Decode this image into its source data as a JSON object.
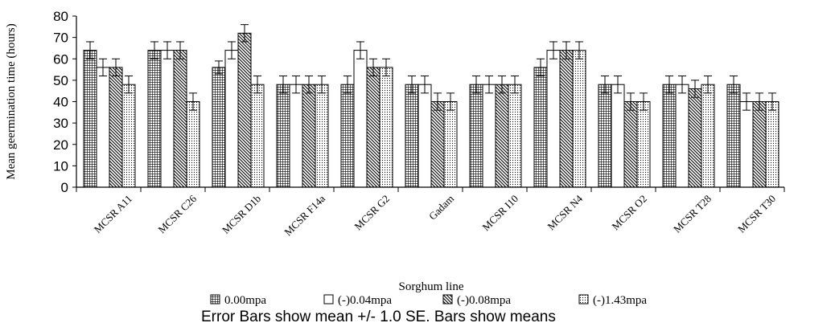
{
  "chart_data": {
    "type": "bar",
    "title": "",
    "xlabel": "Sorghum line",
    "ylabel": "Mean geermination time (hours)",
    "ylim": [
      0,
      80
    ],
    "yticks": [
      0,
      10,
      20,
      30,
      40,
      50,
      60,
      70,
      80
    ],
    "categories": [
      "MCSR A11",
      "MCSR C26",
      "MCSR D1b",
      "MCSR F14a",
      "MCSR G2",
      "Gadam",
      "MCSR I10",
      "MCSR N4",
      "MCSR O2",
      "MCSR T28",
      "MCSR T30"
    ],
    "series": [
      {
        "name": "0.00mpa",
        "pattern": "dense-grid",
        "values": [
          64,
          64,
          56,
          48,
          48,
          48,
          48,
          56,
          48,
          48,
          48
        ],
        "errors": [
          4,
          4,
          3,
          4,
          4,
          4,
          4,
          4,
          4,
          4,
          4
        ]
      },
      {
        "name": "(-)0.04mpa",
        "pattern": "plain",
        "values": [
          56,
          64,
          64,
          48,
          64,
          48,
          48,
          64,
          48,
          48,
          40
        ],
        "errors": [
          4,
          4,
          4,
          4,
          4,
          4,
          4,
          4,
          4,
          4,
          4
        ]
      },
      {
        "name": "(-)0.08mpa",
        "pattern": "diagonal",
        "values": [
          56,
          64,
          72,
          48,
          56,
          40,
          48,
          64,
          40,
          46,
          40
        ],
        "errors": [
          4,
          4,
          4,
          4,
          4,
          4,
          4,
          4,
          4,
          4,
          4
        ]
      },
      {
        "name": "(-)1.43mpa",
        "pattern": "dots",
        "values": [
          48,
          40,
          48,
          48,
          56,
          40,
          48,
          64,
          40,
          48,
          40
        ],
        "errors": [
          4,
          4,
          4,
          4,
          4,
          4,
          4,
          4,
          4,
          4,
          4
        ]
      }
    ],
    "note": "Error Bars show mean +/- 1.0 SE. Bars show means",
    "grid": false,
    "legend_position": "bottom"
  }
}
